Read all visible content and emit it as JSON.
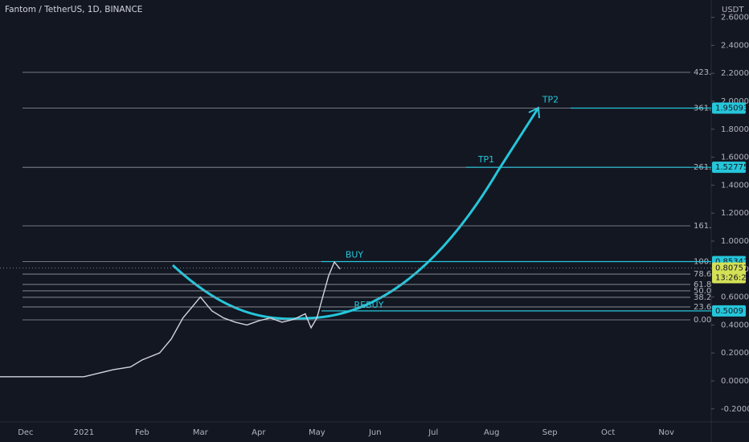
{
  "header": {
    "symbol": "Fantom / TetherUS, 1D, BINANCE",
    "currency": "USDT"
  },
  "chart_data": {
    "type": "line",
    "categories": [
      "Dec",
      "2021",
      "Feb",
      "Mar",
      "Apr",
      "May",
      "Jun",
      "Jul",
      "Aug",
      "Sep",
      "Oct",
      "Nov"
    ],
    "x": [
      -0.44,
      0.5,
      1.0,
      1.2,
      1.5,
      1.8,
      2.0,
      2.3,
      2.5,
      2.7,
      2.9,
      3.0,
      3.2,
      3.4,
      3.6,
      3.8,
      4.0,
      4.2,
      4.4,
      4.6,
      4.8,
      4.9,
      5.0,
      5.1,
      5.2,
      5.3,
      5.4
    ],
    "values": [
      0.03,
      0.03,
      0.03,
      0.05,
      0.08,
      0.1,
      0.15,
      0.2,
      0.3,
      0.45,
      0.55,
      0.6,
      0.5,
      0.45,
      0.42,
      0.4,
      0.43,
      0.45,
      0.42,
      0.44,
      0.48,
      0.38,
      0.45,
      0.6,
      0.75,
      0.85,
      0.8
    ],
    "color": "#d1d4dc",
    "xlim": [
      -0.44,
      11.77
    ],
    "ylim": [
      -0.293,
      2.724
    ],
    "yticks": [
      {
        "value": -0.2,
        "label": "-0.20000"
      },
      {
        "value": 0,
        "label": "0.00000"
      },
      {
        "value": 0.2,
        "label": "0.20000"
      },
      {
        "value": 0.4,
        "label": "0.40000"
      },
      {
        "value": 0.6,
        "label": "0.60000"
      },
      {
        "value": 0.8,
        "label": "0.80000"
      },
      {
        "value": 1,
        "label": "1.00000"
      },
      {
        "value": 1.2,
        "label": "1.20000"
      },
      {
        "value": 1.4,
        "label": "1.40000"
      },
      {
        "value": 1.6,
        "label": "1.60000"
      },
      {
        "value": 1.8,
        "label": "1.80000"
      },
      {
        "value": 2,
        "label": "2.00000"
      },
      {
        "value": 2.2,
        "label": "2.20000"
      },
      {
        "value": 2.4,
        "label": "2.40000"
      },
      {
        "value": 2.6,
        "label": "2.60000"
      }
    ],
    "levels": [
      {
        "label": "423.",
        "value": 2.207
      },
      {
        "label": "361.",
        "value": 1.95093
      },
      {
        "label": "261.",
        "value": 1.52775
      },
      {
        "label": "161.",
        "value": 1.109
      },
      {
        "label": "100.",
        "value": 0.85341
      },
      {
        "label": "78.6",
        "value": 0.764
      },
      {
        "label": "61.8",
        "value": 0.69
      },
      {
        "label": "50.0",
        "value": 0.644
      },
      {
        "label": "38.2",
        "value": 0.598
      },
      {
        "label": "23.6",
        "value": 0.529
      },
      {
        "label": "0.00",
        "value": 0.437
      }
    ],
    "badges": [
      {
        "value": 1.95093,
        "color": "#26c6da"
      },
      {
        "value": 1.52775,
        "color": "#26c6da"
      },
      {
        "value": 0.85341,
        "color": "#26c6da"
      },
      {
        "value": 0.5009,
        "color": "#26c6da"
      }
    ],
    "last_price": {
      "value": 0.80757,
      "countdown": "13:26:25",
      "color": "#d4e157"
    },
    "annotations": [
      {
        "text": "TP2"
      },
      {
        "text": "TP1"
      },
      {
        "text": "BUY"
      },
      {
        "text": "REBUY"
      }
    ]
  }
}
